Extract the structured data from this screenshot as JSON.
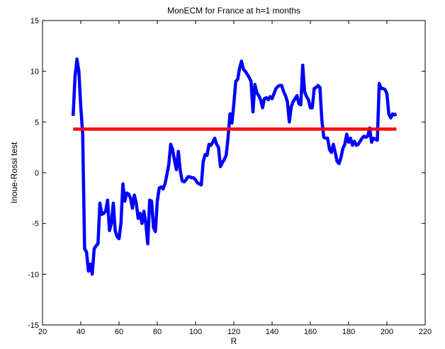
{
  "chart_data": {
    "type": "line",
    "title": "MonECM for France at h=1 months",
    "xlabel": "R",
    "ylabel": "Inoue-Rossi test",
    "xlim": [
      20,
      220
    ],
    "ylim": [
      -15,
      15
    ],
    "xticks": [
      20,
      40,
      60,
      80,
      100,
      120,
      140,
      160,
      180,
      200,
      220
    ],
    "yticks": [
      -15,
      -10,
      -5,
      0,
      5,
      10,
      15
    ],
    "grid": false,
    "series": [
      {
        "color": "#0000ff",
        "x": [
          36,
          37,
          38,
          39,
          40,
          41,
          42,
          43,
          44,
          45,
          46,
          47,
          48,
          49,
          50,
          51,
          52,
          53,
          54,
          55,
          56,
          57,
          58,
          59,
          60,
          61,
          62,
          63,
          64,
          65,
          66,
          67,
          68,
          69,
          70,
          71,
          72,
          73,
          74,
          75,
          76,
          77,
          78,
          79,
          80,
          81,
          82,
          83,
          84,
          85,
          86,
          87,
          88,
          89,
          90,
          91,
          92,
          93,
          94,
          95,
          96,
          97,
          98,
          99,
          100,
          101,
          102,
          103,
          104,
          105,
          106,
          107,
          108,
          109,
          110,
          111,
          112,
          113,
          114,
          115,
          116,
          117,
          118,
          119,
          120,
          121,
          122,
          123,
          124,
          125,
          126,
          127,
          128,
          129,
          130,
          131,
          132,
          133,
          134,
          135,
          136,
          137,
          138,
          139,
          140,
          141,
          142,
          143,
          144,
          145,
          146,
          147,
          148,
          149,
          150,
          151,
          152,
          153,
          154,
          155,
          156,
          157,
          158,
          159,
          160,
          161,
          162,
          163,
          164,
          165,
          166,
          167,
          168,
          169,
          170,
          171,
          172,
          173,
          174,
          175,
          176,
          177,
          178,
          179,
          180,
          181,
          182,
          183,
          184,
          185,
          186,
          187,
          188,
          189,
          190,
          191,
          192,
          193,
          194,
          195,
          196,
          197,
          198,
          199,
          200,
          201,
          202,
          203,
          204,
          205
        ],
        "y": [
          5.6,
          9.5,
          11.2,
          10.0,
          6.5,
          3.8,
          -7.5,
          -7.8,
          -9.7,
          -9.0,
          -10.0,
          -7.5,
          -7.2,
          -7.0,
          -3.0,
          -4.1,
          -4.0,
          -3.8,
          -2.7,
          -5.7,
          -5.0,
          -3.0,
          -5.7,
          -6.3,
          -6.5,
          -5.0,
          -1.1,
          -2.8,
          -2.0,
          -2.1,
          -2.5,
          -3.5,
          -2.2,
          -3.0,
          -4.5,
          -4.0,
          -5.0,
          -3.8,
          -5.0,
          -7.0,
          -2.7,
          -2.8,
          -5.4,
          -5.8,
          -2.8,
          -1.5,
          -1.4,
          -1.6,
          -1.1,
          -0.2,
          0.8,
          2.8,
          2.3,
          1.2,
          0.3,
          2.1,
          0.2,
          -0.8,
          -0.9,
          -0.7,
          -0.4,
          -0.4,
          -0.5,
          -0.5,
          -0.7,
          -1.0,
          -1.1,
          -1.2,
          1.1,
          1.8,
          1.7,
          2.8,
          2.7,
          3.0,
          3.4,
          2.8,
          2.5,
          0.6,
          1.0,
          1.3,
          1.7,
          3.5,
          5.8,
          4.9,
          6.8,
          9.0,
          9.2,
          10.3,
          11.0,
          10.2,
          10.0,
          9.7,
          9.4,
          9.0,
          6.0,
          8.7,
          7.9,
          7.6,
          7.2,
          6.4,
          7.3,
          7.4,
          7.2,
          7.5,
          7.3,
          7.8,
          8.3,
          8.5,
          8.6,
          8.6,
          8.0,
          7.6,
          7.0,
          5.0,
          6.5,
          7.0,
          7.3,
          7.6,
          6.8,
          6.7,
          10.6,
          8.0,
          7.5,
          7.2,
          6.4,
          6.4,
          8.3,
          8.4,
          8.6,
          8.4,
          5.2,
          3.5,
          3.4,
          3.4,
          2.3,
          2.0,
          2.8,
          2.0,
          1.1,
          0.9,
          1.5,
          2.4,
          2.8,
          3.8,
          3.0,
          3.4,
          2.7,
          3.1,
          2.7,
          2.8,
          3.1,
          3.4,
          3.6,
          3.5,
          3.6,
          4.4,
          3.0,
          3.4,
          3.3,
          3.2,
          8.8,
          8.3,
          8.3,
          8.2,
          7.8,
          5.8,
          5.4,
          5.8,
          5.7,
          5.8
        ]
      },
      {
        "color": "#ff0000",
        "x": [
          36,
          205
        ],
        "y": [
          4.3,
          4.3
        ]
      }
    ]
  }
}
